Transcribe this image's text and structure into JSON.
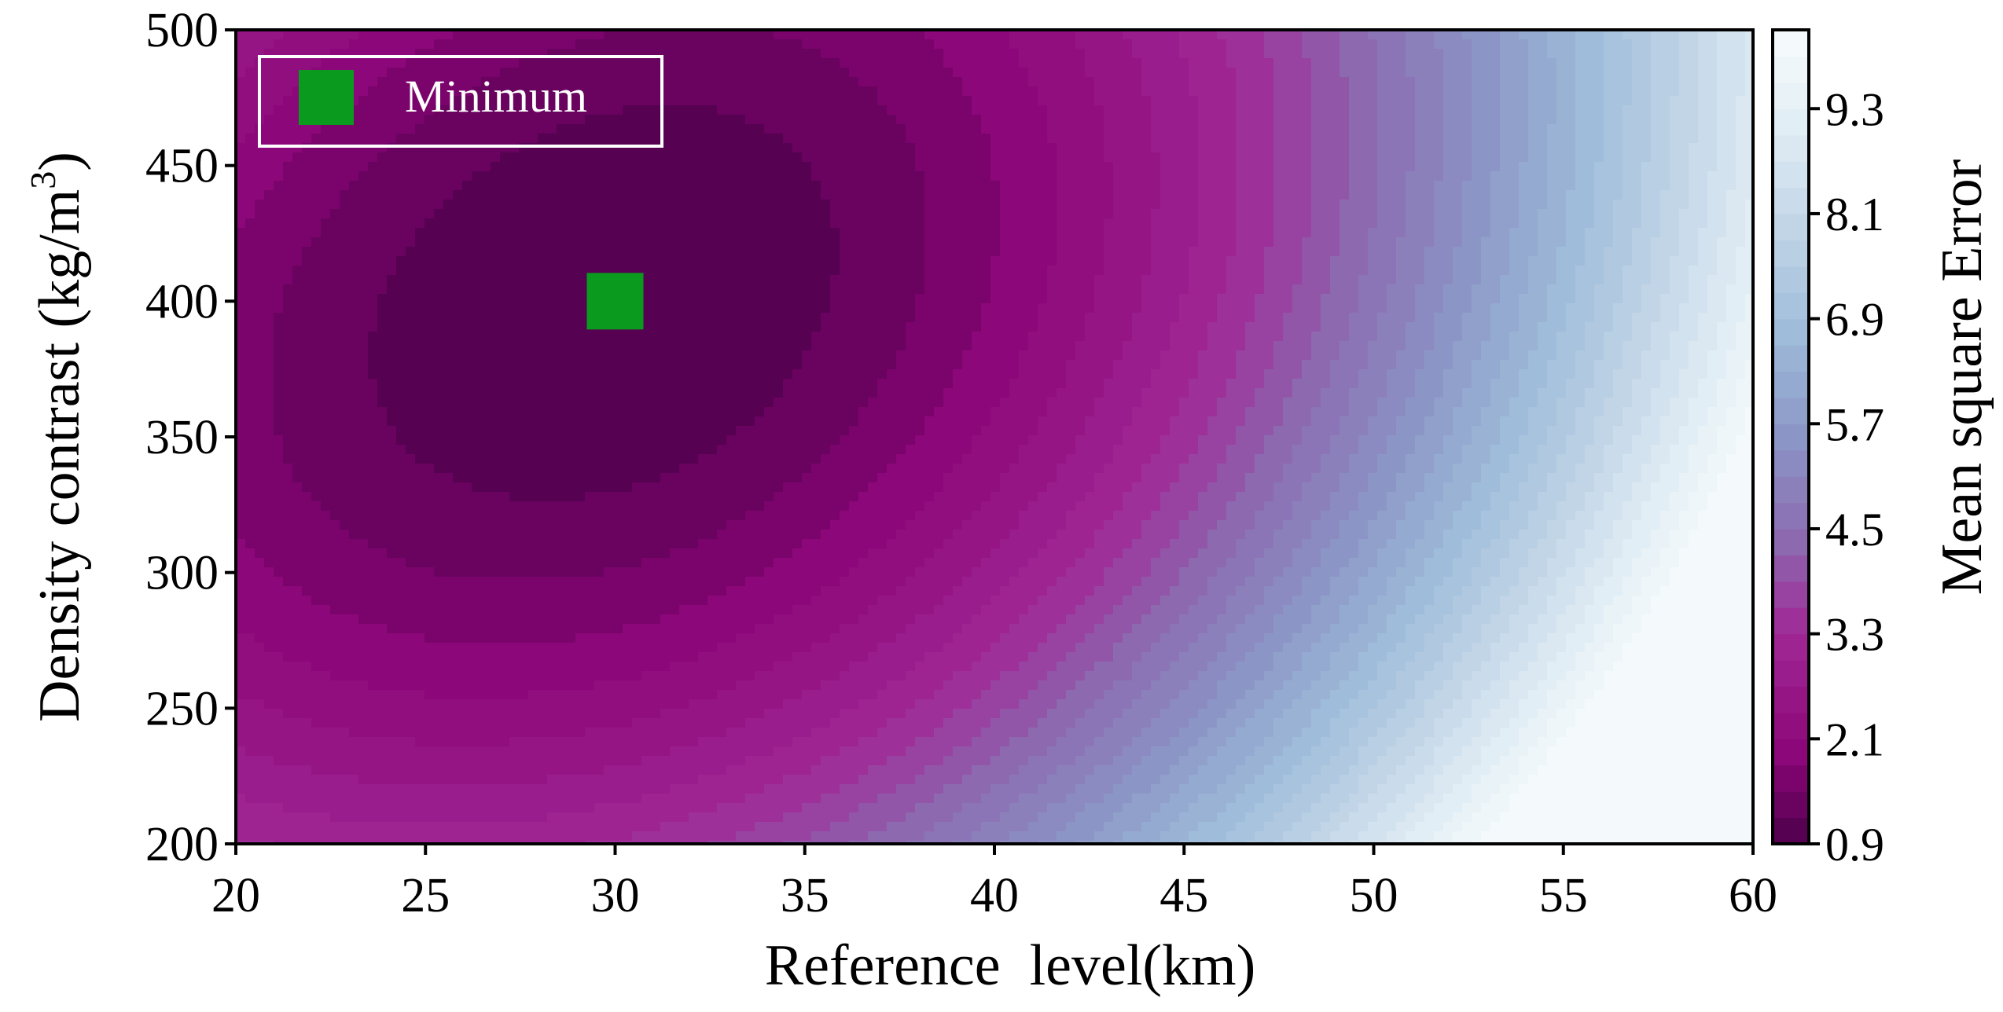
{
  "chart_data": {
    "type": "heatmap",
    "subtype": "filled-contour",
    "xlabel": "Reference  level(km)",
    "ylabel": "Density contrast (kg/m",
    "ylabel_superscript": "3",
    "ylabel_suffix": ")",
    "xlim": [
      20,
      60
    ],
    "ylim": [
      200,
      500
    ],
    "xticks": [
      "20",
      "25",
      "30",
      "35",
      "40",
      "45",
      "50",
      "55",
      "60"
    ],
    "yticks": [
      "200",
      "250",
      "300",
      "350",
      "400",
      "450",
      "500"
    ],
    "colorbar": {
      "label": "Mean square Error",
      "range": [
        0.9,
        10.2
      ],
      "ticks": [
        "0.9",
        "2.1",
        "3.3",
        "4.5",
        "5.7",
        "6.9",
        "8.1",
        "9.3"
      ],
      "tick_values": [
        0.9,
        2.1,
        3.3,
        4.5,
        5.7,
        6.9,
        8.1,
        9.3
      ],
      "colormap": "BuPu (reversed)",
      "color_low": "#4d004b",
      "color_high": "#f7fcfd"
    },
    "minimum": {
      "x": 30,
      "y": 400,
      "marker_color": "#0a9a1e"
    },
    "legend": {
      "label": "Minimum",
      "placement": "top-left",
      "marker_color": "#0a9a1e",
      "frame_color": "#ffffff"
    },
    "grid": false
  }
}
